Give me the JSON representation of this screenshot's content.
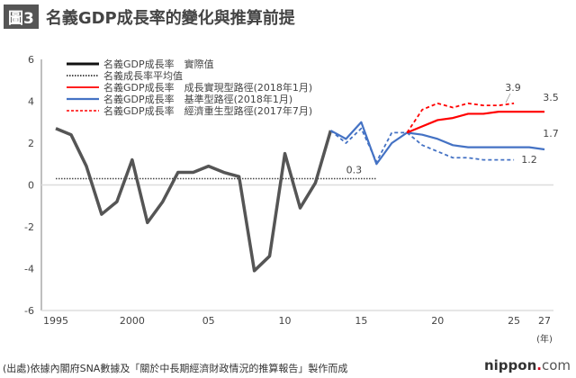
{
  "header": {
    "badge": "圖3",
    "title": "名義GDP成長率的變化與推算前提"
  },
  "footer": {
    "source": "(出處)依據內閣府SNA數據及「關於中長期經濟財政情況的推算報告」製作而成",
    "logo_main": "nippon",
    "logo_dot": ".",
    "logo_com": "com"
  },
  "chart_data": {
    "type": "line",
    "title": "名義GDP成長率的變化與推算前提",
    "xlabel": "(年)",
    "ylabel": "",
    "ylim": [
      -6,
      6
    ],
    "xlim": [
      1995,
      2027
    ],
    "yticks": [
      "6",
      "4",
      "2",
      "0",
      "-2",
      "-4",
      "-6"
    ],
    "yticks_values": [
      6,
      4,
      2,
      0,
      -2,
      -4,
      -6
    ],
    "xticks": [
      {
        "v": 1995,
        "label": "1995"
      },
      {
        "v": 2000,
        "label": "2000"
      },
      {
        "v": 2005,
        "label": "05"
      },
      {
        "v": 2010,
        "label": "10"
      },
      {
        "v": 2015,
        "label": "15"
      },
      {
        "v": 2020,
        "label": "20"
      },
      {
        "v": 2025,
        "label": "25"
      },
      {
        "v": 2027,
        "label": "27"
      }
    ],
    "legend_position": "top-left",
    "average": {
      "name": "名義成長率平均值",
      "value": 0.3,
      "label": "0.3",
      "x": [
        1995,
        2016
      ]
    },
    "series": [
      {
        "name": "名義GDP成長率　實際值",
        "color": "#555555",
        "dash": "",
        "x": [
          1995,
          1996,
          1997,
          1998,
          1999,
          2000,
          2001,
          2002,
          2003,
          2004,
          2005,
          2006,
          2007,
          2008,
          2009,
          2010,
          2011,
          2012,
          2013
        ],
        "values": [
          2.7,
          2.4,
          0.9,
          -1.4,
          -0.8,
          1.2,
          -1.8,
          -0.8,
          0.6,
          0.6,
          0.9,
          0.6,
          0.4,
          -4.1,
          -3.4,
          1.5,
          -1.1,
          0.1,
          2.6
        ]
      },
      {
        "name": "名義GDP成長率　成長實現型路徑(2018年1月)",
        "color": "#ff0000",
        "dash": "",
        "x": [
          2018,
          2019,
          2020,
          2021,
          2022,
          2023,
          2024,
          2025,
          2026,
          2027
        ],
        "values": [
          2.5,
          2.8,
          3.1,
          3.2,
          3.4,
          3.4,
          3.5,
          3.5,
          3.5,
          3.5
        ],
        "end_label": "3.5"
      },
      {
        "name": "名義GDP成長率　基準型路徑(2018年1月)",
        "color": "#4472c4",
        "dash": "",
        "x": [
          2013,
          2014,
          2015,
          2016,
          2017,
          2018,
          2019,
          2020,
          2021,
          2022,
          2023,
          2024,
          2025,
          2026,
          2027
        ],
        "values": [
          2.6,
          2.2,
          3.0,
          1.0,
          2.0,
          2.5,
          2.4,
          2.2,
          1.9,
          1.8,
          1.8,
          1.8,
          1.8,
          1.8,
          1.7
        ],
        "end_label": "1.7"
      },
      {
        "name": "名義GDP成長率　經濟重生型路徑(2017年7月)",
        "color": "#ff0000",
        "dash": "4,3",
        "x": [
          2018,
          2019,
          2020,
          2021,
          2022,
          2023,
          2024,
          2025
        ],
        "values": [
          2.5,
          3.6,
          3.9,
          3.7,
          3.9,
          3.8,
          3.8,
          3.9
        ],
        "end_label": "3.9"
      },
      {
        "name": "",
        "color": "#4472c4",
        "dash": "4,3",
        "x": [
          2013,
          2014,
          2015,
          2016,
          2017,
          2018,
          2019,
          2020,
          2021,
          2022,
          2023,
          2024,
          2025
        ],
        "values": [
          2.6,
          2.0,
          2.7,
          1.1,
          2.5,
          2.5,
          1.9,
          1.6,
          1.3,
          1.3,
          1.2,
          1.2,
          1.2
        ],
        "end_label": "1.2"
      }
    ]
  }
}
